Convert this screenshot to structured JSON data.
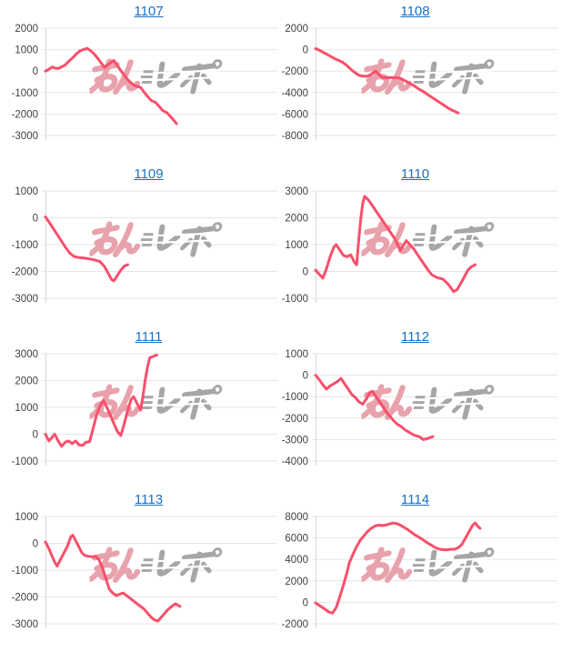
{
  "page": {
    "background": "#ffffff"
  },
  "style": {
    "line_color": "#f94f6b",
    "grid_color": "#e5e5e5",
    "axis_color": "#d7d7d7",
    "tick_label_color": "#3f3f3f",
    "title_link_color": "#1b6fc4"
  },
  "watermark": {
    "name": "minrepo-logo",
    "text": "みんレポ",
    "pink": "#e8a2ab",
    "gray": "#a6a6a6"
  },
  "chart_data": [
    {
      "title": "1107",
      "type": "line",
      "xlabel": "",
      "ylabel": "",
      "ylim": [
        -3000,
        2000
      ],
      "yticks": [
        2000,
        1000,
        0,
        -1000,
        -2000,
        -3000
      ],
      "series_color": "#f94f6b",
      "grid": true,
      "legend": false,
      "points": [
        [
          0,
          0
        ],
        [
          1.5,
          90
        ],
        [
          3,
          190
        ],
        [
          4,
          140
        ],
        [
          5.5,
          120
        ],
        [
          7,
          200
        ],
        [
          8.5,
          290
        ],
        [
          10,
          450
        ],
        [
          12,
          650
        ],
        [
          13.5,
          820
        ],
        [
          15,
          950
        ],
        [
          16.5,
          1010
        ],
        [
          18,
          1060
        ],
        [
          19.5,
          950
        ],
        [
          21,
          800
        ],
        [
          22.5,
          600
        ],
        [
          24,
          380
        ],
        [
          25.5,
          170
        ],
        [
          27,
          300
        ],
        [
          28.5,
          430
        ],
        [
          29.5,
          500
        ],
        [
          31,
          250
        ],
        [
          32.5,
          20
        ],
        [
          34,
          -200
        ],
        [
          35.5,
          -400
        ],
        [
          37,
          -550
        ],
        [
          38.5,
          -680
        ],
        [
          40,
          -730
        ],
        [
          41,
          -760
        ],
        [
          42.5,
          -980
        ],
        [
          44,
          -1180
        ],
        [
          45.5,
          -1360
        ],
        [
          47.5,
          -1460
        ],
        [
          49,
          -1640
        ],
        [
          50.5,
          -1830
        ],
        [
          52.5,
          -1950
        ],
        [
          54,
          -2130
        ],
        [
          55.5,
          -2310
        ],
        [
          56.5,
          -2450
        ]
      ]
    },
    {
      "title": "1108",
      "type": "line",
      "xlabel": "",
      "ylabel": "",
      "ylim": [
        -8000,
        2000
      ],
      "yticks": [
        2000,
        0,
        -2000,
        -4000,
        -6000,
        -8000
      ],
      "series_color": "#f94f6b",
      "grid": true,
      "legend": false,
      "points": [
        [
          0,
          100
        ],
        [
          2,
          -100
        ],
        [
          4,
          -350
        ],
        [
          6,
          -600
        ],
        [
          8,
          -850
        ],
        [
          10,
          -1050
        ],
        [
          11,
          -1150
        ],
        [
          12.5,
          -1400
        ],
        [
          14,
          -1700
        ],
        [
          15.5,
          -2000
        ],
        [
          17,
          -2250
        ],
        [
          18,
          -2400
        ],
        [
          19.5,
          -2460
        ],
        [
          21,
          -2480
        ],
        [
          22.5,
          -2380
        ],
        [
          24,
          -2120
        ],
        [
          24.8,
          -1980
        ],
        [
          26,
          -2300
        ],
        [
          27.5,
          -2580
        ],
        [
          29,
          -2620
        ],
        [
          31,
          -2600
        ],
        [
          33,
          -2610
        ],
        [
          35,
          -2660
        ],
        [
          37,
          -2900
        ],
        [
          39,
          -3150
        ],
        [
          41,
          -3400
        ],
        [
          42.5,
          -3650
        ],
        [
          44.5,
          -3900
        ],
        [
          46.5,
          -4200
        ],
        [
          48.5,
          -4500
        ],
        [
          50.5,
          -4800
        ],
        [
          52.5,
          -5100
        ],
        [
          54.5,
          -5400
        ],
        [
          56.5,
          -5650
        ],
        [
          59,
          -5900
        ]
      ]
    },
    {
      "title": "1109",
      "type": "line",
      "xlabel": "",
      "ylabel": "",
      "ylim": [
        -3000,
        1000
      ],
      "yticks": [
        1000,
        0,
        -1000,
        -2000,
        -3000
      ],
      "series_color": "#f94f6b",
      "grid": true,
      "legend": false,
      "points": [
        [
          0,
          30
        ],
        [
          1.5,
          -150
        ],
        [
          3,
          -350
        ],
        [
          4.5,
          -550
        ],
        [
          6,
          -750
        ],
        [
          7.5,
          -950
        ],
        [
          9,
          -1150
        ],
        [
          10.5,
          -1320
        ],
        [
          12.5,
          -1450
        ],
        [
          14.5,
          -1480
        ],
        [
          16.5,
          -1500
        ],
        [
          18,
          -1520
        ],
        [
          20,
          -1550
        ],
        [
          21.5,
          -1580
        ],
        [
          23.5,
          -1630
        ],
        [
          25.5,
          -1820
        ],
        [
          27,
          -2060
        ],
        [
          28.5,
          -2300
        ],
        [
          29.5,
          -2350
        ],
        [
          31,
          -2150
        ],
        [
          32.5,
          -1950
        ],
        [
          34,
          -1800
        ],
        [
          35.5,
          -1750
        ]
      ]
    },
    {
      "title": "1110",
      "type": "line",
      "xlabel": "",
      "ylabel": "",
      "ylim": [
        -1000,
        3000
      ],
      "yticks": [
        3000,
        2000,
        1000,
        0,
        -1000
      ],
      "series_color": "#f94f6b",
      "grid": true,
      "legend": false,
      "points": [
        [
          0,
          50
        ],
        [
          1.5,
          -100
        ],
        [
          3,
          -250
        ],
        [
          4.5,
          100
        ],
        [
          6,
          550
        ],
        [
          7.5,
          900
        ],
        [
          8.5,
          1000
        ],
        [
          10,
          800
        ],
        [
          11.5,
          600
        ],
        [
          13,
          550
        ],
        [
          14.5,
          620
        ],
        [
          16,
          350
        ],
        [
          17,
          250
        ],
        [
          17.8,
          1100
        ],
        [
          18.6,
          1900
        ],
        [
          19.5,
          2550
        ],
        [
          20.3,
          2800
        ],
        [
          22,
          2650
        ],
        [
          23.5,
          2450
        ],
        [
          25,
          2250
        ],
        [
          26.5,
          2050
        ],
        [
          28,
          1850
        ],
        [
          29.5,
          1650
        ],
        [
          31,
          1450
        ],
        [
          32.5,
          1250
        ],
        [
          34,
          1000
        ],
        [
          35,
          780
        ],
        [
          36.5,
          1000
        ],
        [
          37.5,
          1150
        ],
        [
          39,
          1000
        ],
        [
          40.5,
          850
        ],
        [
          42,
          650
        ],
        [
          43.5,
          450
        ],
        [
          45,
          250
        ],
        [
          46.5,
          50
        ],
        [
          48,
          -120
        ],
        [
          49.5,
          -200
        ],
        [
          51,
          -250
        ],
        [
          52.5,
          -280
        ],
        [
          54,
          -400
        ],
        [
          55.5,
          -550
        ],
        [
          57,
          -750
        ],
        [
          58.5,
          -680
        ],
        [
          60,
          -450
        ],
        [
          61.5,
          -200
        ],
        [
          63,
          50
        ],
        [
          64.5,
          180
        ],
        [
          66,
          250
        ]
      ]
    },
    {
      "title": "1111",
      "type": "line",
      "xlabel": "",
      "ylabel": "",
      "ylim": [
        -1000,
        3000
      ],
      "yticks": [
        3000,
        2000,
        1000,
        0,
        -1000
      ],
      "series_color": "#f94f6b",
      "grid": true,
      "legend": false,
      "points": [
        [
          0,
          0
        ],
        [
          1.5,
          -250
        ],
        [
          3,
          -100
        ],
        [
          4,
          0
        ],
        [
          5.5,
          -250
        ],
        [
          7,
          -450
        ],
        [
          8.5,
          -300
        ],
        [
          10,
          -250
        ],
        [
          11.5,
          -350
        ],
        [
          13,
          -250
        ],
        [
          14.5,
          -400
        ],
        [
          16,
          -420
        ],
        [
          17.5,
          -300
        ],
        [
          19,
          -280
        ],
        [
          20.5,
          200
        ],
        [
          22,
          700
        ],
        [
          23.5,
          1050
        ],
        [
          25,
          1250
        ],
        [
          26.5,
          1000
        ],
        [
          28,
          700
        ],
        [
          29.5,
          400
        ],
        [
          31,
          100
        ],
        [
          32.5,
          -50
        ],
        [
          34,
          400
        ],
        [
          35.5,
          900
        ],
        [
          37,
          1300
        ],
        [
          38,
          1400
        ],
        [
          39.5,
          1150
        ],
        [
          41,
          900
        ],
        [
          42,
          1400
        ],
        [
          43,
          2000
        ],
        [
          44,
          2500
        ],
        [
          45,
          2850
        ],
        [
          46.5,
          2900
        ],
        [
          48,
          2950
        ]
      ]
    },
    {
      "title": "1112",
      "type": "line",
      "xlabel": "",
      "ylabel": "",
      "ylim": [
        -4000,
        1000
      ],
      "yticks": [
        1000,
        0,
        -1000,
        -2000,
        -3000,
        -4000
      ],
      "series_color": "#f94f6b",
      "grid": true,
      "legend": false,
      "points": [
        [
          0,
          0
        ],
        [
          1.5,
          -200
        ],
        [
          3,
          -450
        ],
        [
          4.5,
          -650
        ],
        [
          6,
          -500
        ],
        [
          7.5,
          -400
        ],
        [
          9,
          -300
        ],
        [
          10.5,
          -150
        ],
        [
          12,
          -400
        ],
        [
          13.5,
          -650
        ],
        [
          15,
          -900
        ],
        [
          16.5,
          -1050
        ],
        [
          18,
          -1250
        ],
        [
          19.5,
          -1350
        ],
        [
          21,
          -1100
        ],
        [
          22.5,
          -800
        ],
        [
          23.5,
          -750
        ],
        [
          25,
          -1000
        ],
        [
          26.5,
          -1250
        ],
        [
          28,
          -1500
        ],
        [
          29.5,
          -1750
        ],
        [
          31,
          -1950
        ],
        [
          32.5,
          -2150
        ],
        [
          34,
          -2300
        ],
        [
          35.5,
          -2400
        ],
        [
          37,
          -2550
        ],
        [
          38.5,
          -2650
        ],
        [
          40,
          -2750
        ],
        [
          41.5,
          -2820
        ],
        [
          43,
          -2870
        ],
        [
          44.5,
          -3000
        ],
        [
          46,
          -2960
        ],
        [
          47,
          -2920
        ],
        [
          48.5,
          -2860
        ]
      ]
    },
    {
      "title": "1113",
      "type": "line",
      "xlabel": "",
      "ylabel": "",
      "ylim": [
        -3000,
        1000
      ],
      "yticks": [
        1000,
        0,
        -1000,
        -2000,
        -3000
      ],
      "series_color": "#f94f6b",
      "grid": true,
      "legend": false,
      "points": [
        [
          0,
          50
        ],
        [
          1.5,
          -200
        ],
        [
          3,
          -500
        ],
        [
          4,
          -700
        ],
        [
          5,
          -850
        ],
        [
          6.5,
          -600
        ],
        [
          8,
          -350
        ],
        [
          9.5,
          -100
        ],
        [
          11,
          250
        ],
        [
          11.8,
          300
        ],
        [
          13,
          100
        ],
        [
          14.5,
          -150
        ],
        [
          15.7,
          -350
        ],
        [
          17,
          -450
        ],
        [
          18.5,
          -480
        ],
        [
          20,
          -500
        ],
        [
          21.5,
          -480
        ],
        [
          23,
          -600
        ],
        [
          24.5,
          -900
        ],
        [
          26,
          -1300
        ],
        [
          27.5,
          -1700
        ],
        [
          29,
          -1850
        ],
        [
          30.5,
          -1950
        ],
        [
          32,
          -1900
        ],
        [
          33.5,
          -1850
        ],
        [
          35,
          -1950
        ],
        [
          36.5,
          -2050
        ],
        [
          38,
          -2150
        ],
        [
          39.5,
          -2250
        ],
        [
          41,
          -2350
        ],
        [
          42.5,
          -2450
        ],
        [
          44,
          -2600
        ],
        [
          45.5,
          -2750
        ],
        [
          47,
          -2850
        ],
        [
          48.5,
          -2900
        ],
        [
          50,
          -2750
        ],
        [
          51.5,
          -2600
        ],
        [
          53,
          -2450
        ],
        [
          54.5,
          -2350
        ],
        [
          56,
          -2250
        ],
        [
          57,
          -2300
        ],
        [
          58,
          -2350
        ]
      ]
    },
    {
      "title": "1114",
      "type": "line",
      "xlabel": "",
      "ylabel": "",
      "ylim": [
        -2000,
        8000
      ],
      "yticks": [
        8000,
        6000,
        4000,
        2000,
        0,
        -2000
      ],
      "series_color": "#f94f6b",
      "grid": true,
      "legend": false,
      "points": [
        [
          0,
          -50
        ],
        [
          2,
          -350
        ],
        [
          4,
          -650
        ],
        [
          5.5,
          -900
        ],
        [
          7,
          -1000
        ],
        [
          8.5,
          -500
        ],
        [
          10,
          500
        ],
        [
          11.5,
          1600
        ],
        [
          13,
          2800
        ],
        [
          14,
          3700
        ],
        [
          15.5,
          4500
        ],
        [
          17,
          5200
        ],
        [
          18.5,
          5800
        ],
        [
          20,
          6200
        ],
        [
          21.5,
          6600
        ],
        [
          23,
          6900
        ],
        [
          24.5,
          7100
        ],
        [
          26,
          7200
        ],
        [
          27.5,
          7150
        ],
        [
          29,
          7200
        ],
        [
          30.5,
          7300
        ],
        [
          32,
          7400
        ],
        [
          33.5,
          7350
        ],
        [
          35,
          7200
        ],
        [
          36.5,
          7000
        ],
        [
          38,
          6800
        ],
        [
          39.5,
          6550
        ],
        [
          41,
          6300
        ],
        [
          42.5,
          6100
        ],
        [
          44,
          5900
        ],
        [
          45.5,
          5650
        ],
        [
          47,
          5450
        ],
        [
          48.5,
          5250
        ],
        [
          50,
          5050
        ],
        [
          51.5,
          4950
        ],
        [
          53,
          4900
        ],
        [
          54.5,
          4900
        ],
        [
          56,
          4950
        ],
        [
          57.5,
          4950
        ],
        [
          59,
          5100
        ],
        [
          60.5,
          5400
        ],
        [
          62,
          6000
        ],
        [
          63.5,
          6600
        ],
        [
          65,
          7200
        ],
        [
          66,
          7400
        ],
        [
          67,
          7100
        ],
        [
          68,
          6900
        ]
      ]
    }
  ]
}
